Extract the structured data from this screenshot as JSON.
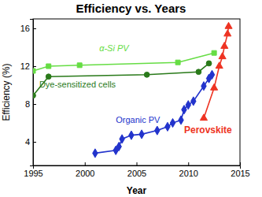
{
  "chart_data": {
    "type": "line",
    "title": "Efficiency vs. Years",
    "x_label": "Year",
    "y_label": "Efficiency (%)",
    "xlim": [
      1995,
      2015
    ],
    "xticks": [
      1995,
      2000,
      2005,
      2010,
      2015
    ],
    "ylim": [
      1.5,
      17
    ],
    "yticks": [
      4,
      8,
      12,
      16
    ],
    "series": [
      {
        "name": "α-Si PV",
        "color": "#66dd44",
        "marker": "square",
        "line_style": "solid",
        "x": [
          1995,
          1996.5,
          1999.5,
          2009,
          2012.5
        ],
        "values": [
          11.5,
          12.0,
          12.1,
          12.4,
          13.4
        ]
      },
      {
        "name": "Dye-sensitized cells",
        "color": "#2a7a1a",
        "marker": "circle",
        "line_style": "solid",
        "x": [
          1995,
          1996.5,
          2006,
          2011,
          2012
        ],
        "values": [
          8.9,
          10.9,
          11.1,
          11.4,
          12.3
        ]
      },
      {
        "name": "Organic PV",
        "color": "#2233cc",
        "marker": "diamond",
        "line_style": "solid",
        "x": [
          2001,
          2003,
          2003.3,
          2003.6,
          2004.5,
          2005.5,
          2007,
          2008,
          2008.5,
          2009.3,
          2009.6,
          2010,
          2010.5,
          2011.5,
          2012,
          2012.3
        ],
        "values": [
          2.8,
          3.1,
          3.5,
          4.3,
          4.7,
          4.8,
          5.2,
          5.6,
          6.0,
          6.3,
          7.4,
          7.9,
          8.3,
          9.9,
          10.7,
          11.1
        ]
      },
      {
        "name": "Perovskite",
        "color": "#ee3322",
        "marker": "triangle",
        "line_style": "solid",
        "x": [
          2011.5,
          2012.5,
          2013,
          2013.3,
          2013.5,
          2013.8,
          2013.9
        ],
        "values": [
          6.5,
          9.7,
          12.0,
          13.0,
          14.1,
          15.4,
          16.2
        ]
      }
    ]
  }
}
